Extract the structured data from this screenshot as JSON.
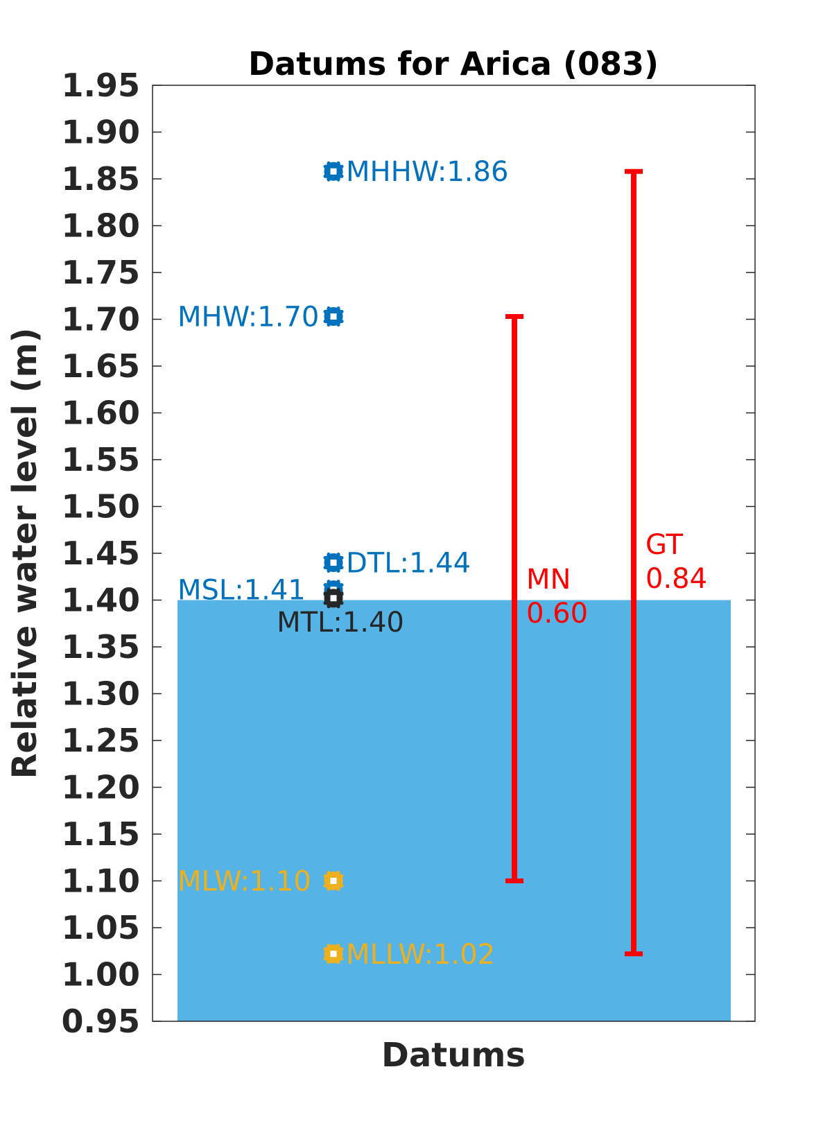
{
  "chart_data": {
    "type": "scatter",
    "title": "Datums for Arica (083)",
    "xlabel": "Datums",
    "ylabel": "Relative water level (m)",
    "ylim": [
      0.95,
      1.95
    ],
    "yticks": [
      "0.95",
      "1.00",
      "1.05",
      "1.10",
      "1.15",
      "1.20",
      "1.25",
      "1.30",
      "1.35",
      "1.40",
      "1.45",
      "1.50",
      "1.55",
      "1.60",
      "1.65",
      "1.70",
      "1.75",
      "1.80",
      "1.85",
      "1.90",
      "1.95"
    ],
    "grid": false,
    "water_fill": {
      "level": 1.4,
      "color": "#56B3E6"
    },
    "datums": [
      {
        "name": "MHHW",
        "value": 1.858,
        "label": "MHHW:1.86",
        "color": "#0072BD",
        "label_side": "right"
      },
      {
        "name": "MHW",
        "value": 1.703,
        "label": "MHW:1.70",
        "color": "#0072BD",
        "label_side": "left"
      },
      {
        "name": "DTL",
        "value": 1.44,
        "label": "DTL:1.44",
        "color": "#0072BD",
        "label_side": "right"
      },
      {
        "name": "MSL",
        "value": 1.411,
        "label": "MSL:1.41",
        "color": "#0072BD",
        "label_side": "left"
      },
      {
        "name": "MTL",
        "value": 1.402,
        "label": "MTL:1.40",
        "color": "#262626",
        "label_side": "below"
      },
      {
        "name": "MLW",
        "value": 1.1,
        "label": "MLW:1.10",
        "color": "#EDB120",
        "label_side": "left"
      },
      {
        "name": "MLLW",
        "value": 1.022,
        "label": "MLLW:1.02",
        "color": "#EDB120",
        "label_side": "right"
      }
    ],
    "ranges": [
      {
        "name": "MN",
        "low": 1.1,
        "high": 1.703,
        "label_name": "MN",
        "label_value": "0.60",
        "color": "#FF0000"
      },
      {
        "name": "GT",
        "low": 1.022,
        "high": 1.858,
        "label_name": "GT",
        "label_value": "0.84",
        "color": "#FF0000"
      }
    ]
  }
}
